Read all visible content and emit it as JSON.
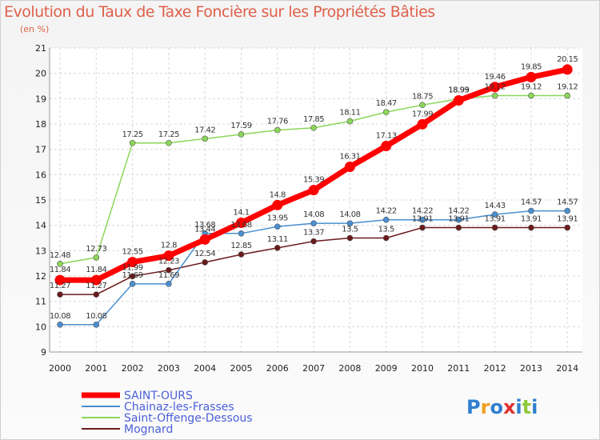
{
  "header": {
    "title": "Evolution du Taux de Taxe Foncière sur les Propriétés Bâties",
    "unit": "(en %)"
  },
  "brand": {
    "name": "Proxiti"
  },
  "chart_data": {
    "type": "line",
    "title": "Evolution du Taux de Taxe Foncière sur les Propriétés Bâties",
    "ylabel": "(en %)",
    "xlabel": "",
    "ylim": [
      9,
      21
    ],
    "yticks": [
      9,
      10,
      11,
      12,
      13,
      14,
      15,
      16,
      17,
      18,
      19,
      20,
      21
    ],
    "grid": true,
    "legend_position": "bottom-left",
    "categories": [
      "2000",
      "2001",
      "2002",
      "2003",
      "2004",
      "2005",
      "2006",
      "2007",
      "2008",
      "2009",
      "2010",
      "2011",
      "2012",
      "2013",
      "2014"
    ],
    "series": [
      {
        "name": "Mognard",
        "color": "#6b1a1a",
        "values": [
          11.27,
          11.27,
          11.99,
          12.23,
          12.54,
          12.85,
          13.11,
          13.37,
          13.5,
          13.5,
          13.91,
          13.91,
          13.91,
          13.91,
          13.91
        ],
        "labels": [
          "11.27",
          "11.27",
          "11.99",
          "12.23",
          "12.54",
          "12.85",
          "13.11",
          "13.37",
          "13.5",
          "13.5",
          "13.91",
          "13.91",
          "13.91",
          "13.91",
          "13.91"
        ]
      },
      {
        "name": "Chainaz-les-Frasses",
        "color": "#4a8fd0",
        "values": [
          10.08,
          10.08,
          11.69,
          11.69,
          13.68,
          13.68,
          13.95,
          14.08,
          14.08,
          14.22,
          14.22,
          14.22,
          14.43,
          14.57,
          14.57
        ],
        "labels": [
          "10.08",
          "10.08",
          "11.69",
          "11.69",
          "13.68",
          "13.68",
          "13.95",
          "14.08",
          "14.08",
          "14.22",
          "14.22",
          "14.22",
          "14.43",
          "14.57",
          "14.57"
        ]
      },
      {
        "name": "Saint-Offenge-Dessous",
        "color": "#8cd65a",
        "values": [
          12.48,
          12.73,
          17.25,
          17.25,
          17.42,
          17.59,
          17.76,
          17.85,
          18.11,
          18.47,
          18.75,
          18.99,
          19.12,
          19.12,
          19.12
        ],
        "labels": [
          "12.48",
          "12.73",
          "17.25",
          "17.25",
          "17.42",
          "17.59",
          "17.76",
          "17.85",
          "18.11",
          "18.47",
          "18.75",
          "18.99",
          "19.12",
          "19.12",
          "19.12"
        ]
      },
      {
        "name": "SAINT-OURS",
        "color": "#ff0000",
        "values": [
          11.84,
          11.84,
          12.55,
          12.8,
          13.44,
          14.1,
          14.8,
          15.39,
          16.31,
          17.13,
          17.99,
          18.93,
          19.46,
          19.85,
          20.15
        ],
        "labels": [
          "11.84",
          "11.84",
          "12.55",
          "12.8",
          "13.44",
          "14.1",
          "14.8",
          "15.39",
          "16.31",
          "17.13",
          "17.99",
          "18.93",
          "19.46",
          "19.85",
          "20.15"
        ]
      }
    ],
    "legend": [
      "SAINT-OURS",
      "Chainaz-les-Frasses",
      "Saint-Offenge-Dessous",
      "Mognard"
    ]
  }
}
